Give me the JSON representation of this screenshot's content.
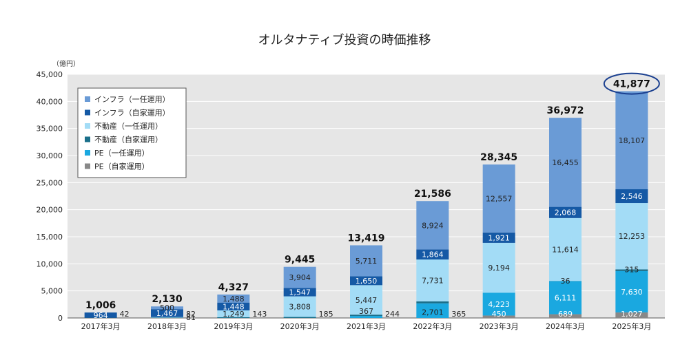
{
  "chart_data": {
    "type": "bar",
    "stacked": true,
    "title": "オルタナティブ投資の時価推移",
    "unit_label": "（億円）",
    "ylim": [
      0,
      45000
    ],
    "yticks": [
      "0",
      "5,000",
      "10,000",
      "15,000",
      "20,000",
      "25,000",
      "30,000",
      "35,000",
      "40,000",
      "45,000"
    ],
    "ytick_values": [
      0,
      5000,
      10000,
      15000,
      20000,
      25000,
      30000,
      35000,
      40000,
      45000
    ],
    "grid": true,
    "legend_position": "top-left",
    "categories": [
      "2017年3月",
      "2018年3月",
      "2019年3月",
      "2020年3月",
      "2021年3月",
      "2022年3月",
      "2023年3月",
      "2024年3月",
      "2025年3月"
    ],
    "series": [
      {
        "name": "PE（自家運用）",
        "color": "#888888",
        "values": [
          0,
          0,
          0,
          0,
          0,
          0,
          450,
          689,
          1027
        ],
        "labels": [
          "",
          "",
          "",
          "",
          "",
          "",
          "450",
          "689",
          "1,027"
        ]
      },
      {
        "name": "PE（一任運用）",
        "color": "#1aa8e0",
        "values": [
          0,
          0,
          0,
          0,
          367,
          2701,
          4223,
          6111,
          7630
        ],
        "labels": [
          "",
          "",
          "",
          "",
          "367",
          "2,701",
          "4,223",
          "6,111",
          "7,630"
        ]
      },
      {
        "name": "不動産（自家運用）",
        "color": "#1a6f8a",
        "values": [
          42,
          82,
          143,
          185,
          244,
          365,
          0,
          36,
          315
        ],
        "labels": [
          "42",
          "82",
          "143",
          "185",
          "244",
          "365",
          "",
          "36",
          "315"
        ]
      },
      {
        "name": "不動産（一任運用）",
        "color": "#a3dcf6",
        "values": [
          0,
          81,
          1249,
          3808,
          5447,
          7731,
          9194,
          11614,
          12253
        ],
        "labels": [
          "",
          "81",
          "1,249",
          "3,808",
          "5,447",
          "7,731",
          "9,194",
          "11,614",
          "12,253"
        ]
      },
      {
        "name": "インフラ（自家運用）",
        "color": "#1559a5",
        "values": [
          964,
          1467,
          1448,
          1547,
          1650,
          1864,
          1921,
          2068,
          2546
        ],
        "labels": [
          "964",
          "1,467",
          "1,448",
          "1,547",
          "1,650",
          "1,864",
          "1,921",
          "2,068",
          "2,546"
        ]
      },
      {
        "name": "インフラ（一任運用）",
        "color": "#6a9bd6",
        "values": [
          0,
          500,
          1488,
          3904,
          5711,
          8924,
          12557,
          16455,
          18107
        ],
        "labels": [
          "",
          "500",
          "1,488",
          "3,904",
          "5,711",
          "8,924",
          "12,557",
          "16,455",
          "18,107"
        ]
      }
    ],
    "legend_order": [
      "インフラ（一任運用）",
      "インフラ（自家運用）",
      "不動産（一任運用）",
      "不動産（自家運用）",
      "PE（一任運用）",
      "PE（自家運用）"
    ],
    "totals": [
      1006,
      2130,
      4327,
      9445,
      13419,
      21586,
      28345,
      36972,
      41877
    ],
    "total_labels": [
      "1,006",
      "2,130",
      "4,327",
      "9,445",
      "13,419",
      "21,586",
      "28,345",
      "36,972",
      "41,877"
    ],
    "highlighted_total": "41,877",
    "colors": {
      "plot_bg": "#e6e6e6",
      "grid": "#ffffff",
      "highlight": "#1a3f8f"
    }
  }
}
